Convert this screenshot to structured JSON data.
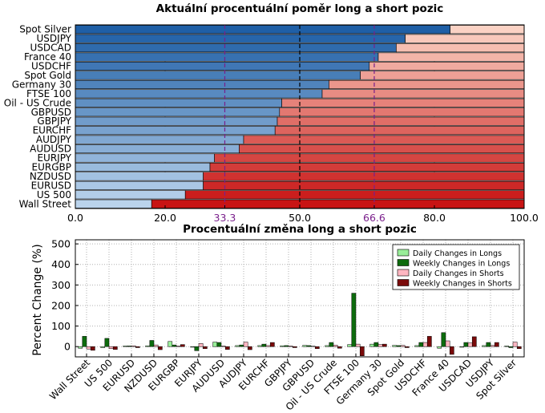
{
  "chart_data": [
    {
      "type": "bar",
      "orientation": "horizontal",
      "stacked": true,
      "title": "Aktuální procentuální poměr long a short pozic",
      "categories": [
        "Spot Silver",
        "USDJPY",
        "USDCAD",
        "France 40",
        "USDCHF",
        "Spot Gold",
        "Germany 30",
        "FTSE 100",
        "Oil - US Crude",
        "GBPUSD",
        "GBPJPY",
        "EURCHF",
        "AUDJPY",
        "AUDUSD",
        "EURJPY",
        "EURGBP",
        "NZDUSD",
        "EURUSD",
        "US 500",
        "Wall Street"
      ],
      "series": [
        {
          "values": [
            83.5,
            73.5,
            71.5,
            67.5,
            65.5,
            63.5,
            56.5,
            55,
            46,
            45.5,
            45,
            44.5,
            37.5,
            36.5,
            31,
            30,
            28.5,
            28.5,
            24.5,
            17
          ]
        },
        {
          "values": [
            16.5,
            26.5,
            28.5,
            32.5,
            34.5,
            36.5,
            43.5,
            45,
            54,
            54.5,
            55,
            55.5,
            62.5,
            63.5,
            69,
            70,
            71.5,
            71.5,
            75.5,
            83
          ]
        }
      ],
      "xlim": [
        0,
        100
      ],
      "xticks": [
        {
          "value": 0,
          "label": "0.0"
        },
        {
          "value": 20,
          "label": "20.0"
        },
        {
          "value": 33.3,
          "label": "33.3"
        },
        {
          "value": 50,
          "label": "50.0"
        },
        {
          "value": 66.6,
          "label": "66.6"
        },
        {
          "value": 80,
          "label": "80.0"
        },
        {
          "value": 100,
          "label": "100.0"
        }
      ],
      "reference_lines": [
        {
          "value": 33.3,
          "color": "#7a1f8c",
          "style": "dashed"
        },
        {
          "value": 50,
          "color": "#000000",
          "style": "dashed"
        },
        {
          "value": 66.6,
          "color": "#7a1f8c",
          "style": "dashed"
        }
      ],
      "grid": true
    },
    {
      "type": "bar",
      "title": "Procentuální změna long a short pozic",
      "ylabel": "Percent Change (%)",
      "ylim": [
        -50,
        520
      ],
      "yticks": [
        0,
        100,
        200,
        300,
        400,
        500
      ],
      "legend_position": "top-right",
      "categories": [
        "Wall Street",
        "US 500",
        "EURUSD",
        "NZDUSD",
        "EURGBP",
        "EURJPY",
        "AUDUSD",
        "AUDJPY",
        "EURCHF",
        "GBPJPY",
        "GBPUSD",
        "Oil - US Crude",
        "FTSE 100",
        "Germany 30",
        "Spot Gold",
        "USDCHF",
        "France 40",
        "USDCAD",
        "USDJPY",
        "Spot Silver"
      ],
      "series": [
        {
          "name": "Daily Changes in Longs",
          "color": "#99ee99",
          "values": [
            -8,
            -5,
            3,
            4,
            25,
            -3,
            22,
            5,
            5,
            4,
            6,
            5,
            10,
            12,
            6,
            5,
            -8,
            -3,
            5,
            3
          ]
        },
        {
          "name": "Weekly Changes in Longs",
          "color": "#0d6b0d",
          "values": [
            50,
            40,
            3,
            30,
            8,
            -20,
            20,
            8,
            12,
            5,
            5,
            20,
            260,
            20,
            5,
            20,
            68,
            20,
            20,
            -5
          ]
        },
        {
          "name": "Daily Changes in Shorts",
          "color": "#ffb6c1",
          "values": [
            -12,
            -10,
            4,
            8,
            3,
            15,
            3,
            22,
            5,
            3,
            2,
            7,
            12,
            10,
            6,
            20,
            28,
            18,
            6,
            22
          ]
        },
        {
          "name": "Weekly Changes in Shorts",
          "color": "#7a0a0a",
          "values": [
            -18,
            -14,
            -5,
            -15,
            10,
            -10,
            -14,
            -15,
            20,
            -5,
            -10,
            -8,
            -45,
            12,
            -5,
            50,
            -38,
            48,
            20,
            -10
          ]
        }
      ],
      "grid": true
    }
  ]
}
